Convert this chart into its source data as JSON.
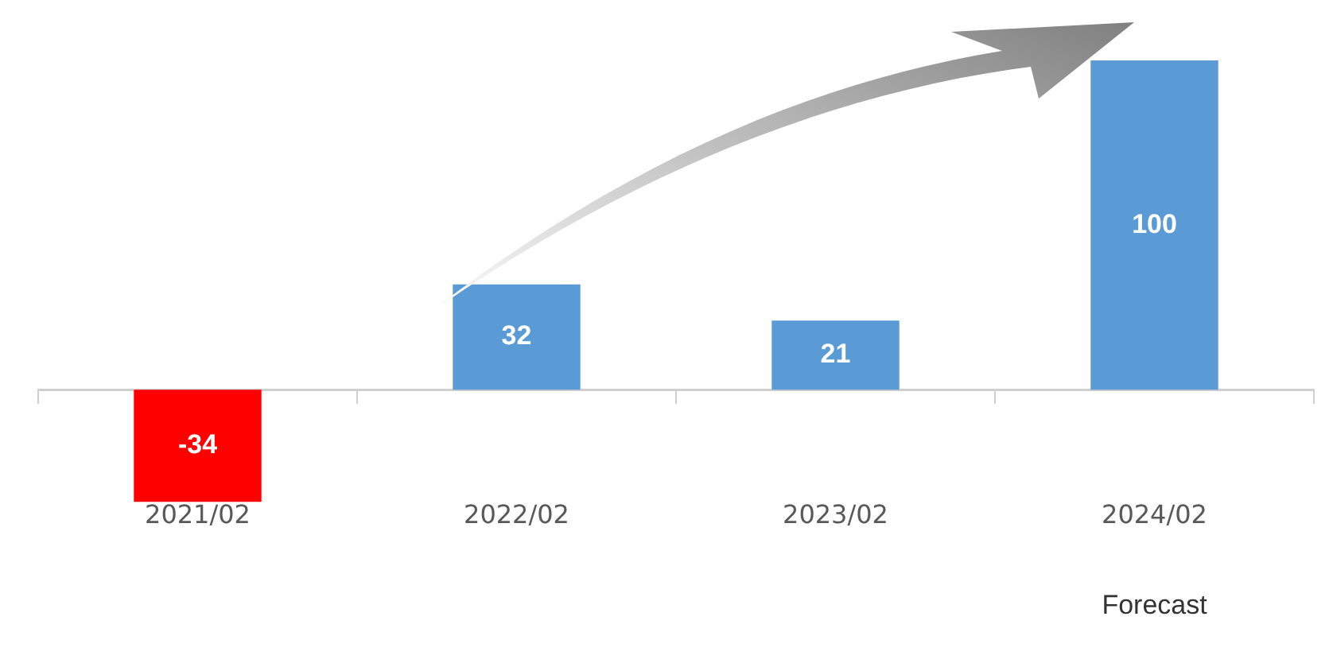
{
  "chart_data": {
    "type": "bar",
    "categories": [
      "2021/02",
      "2022/02",
      "2023/02",
      "2024/02"
    ],
    "values": [
      -34,
      32,
      21,
      100
    ],
    "colors": [
      "#ff0000",
      "#5b9bd5",
      "#5b9bd5",
      "#5b9bd5"
    ],
    "data_labels": true,
    "grid": false,
    "legend": false,
    "annotations": [
      "Forecast"
    ]
  }
}
